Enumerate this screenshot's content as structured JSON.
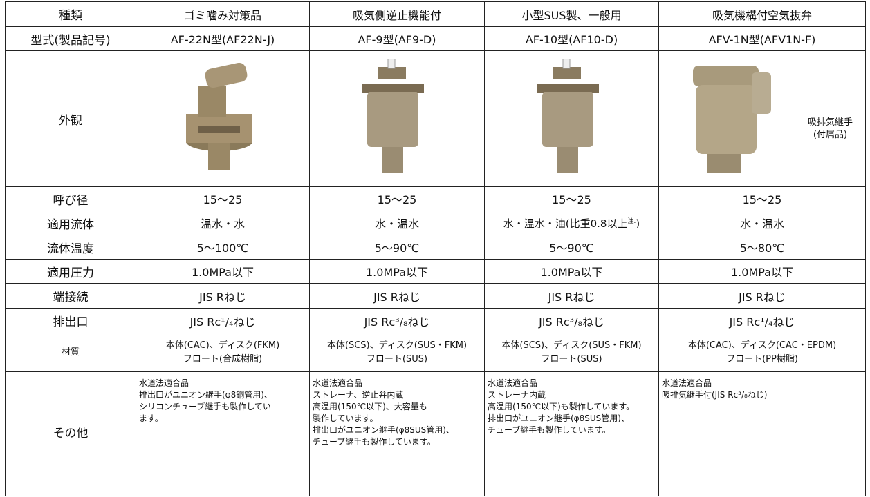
{
  "table": {
    "header": [
      "種類",
      "ゴミ噛み対策品",
      "吸気側逆止機能付",
      "小型SUS製、一般用",
      "吸気機構付空気抜弁"
    ],
    "model": [
      "型式(製品記号)",
      "AF-22N型(AF22N-J)",
      "AF-9型(AF9-D)",
      "AF-10型(AF10-D)",
      "AFV-1N型(AFV1N-F)"
    ],
    "appearance": {
      "label": "外観",
      "caption": [
        "吸排気継手",
        "(付属品)"
      ]
    },
    "size": [
      "呼び径",
      "15～25",
      "15～25",
      "15～25",
      "15～25"
    ],
    "fluid": {
      "label": "適用流体",
      "cells": [
        "温水・水",
        "水・温水",
        {
          "text": "水・温水・油(比重0.8以上",
          "note": "注.",
          "close": ")"
        },
        "水・温水"
      ]
    },
    "temperature": [
      "流体温度",
      "5～100℃",
      "5～90℃",
      "5～90℃",
      "5～80℃"
    ],
    "pressure": [
      "適用圧力",
      "1.0MPa以下",
      "1.0MPa以下",
      "1.0MPa以下",
      "1.0MPa以下"
    ],
    "connection": [
      "端接続",
      "JIS Rねじ",
      "JIS Rねじ",
      "JIS Rねじ",
      "JIS Rねじ"
    ],
    "outlet": [
      "排出口",
      "JIS Rc¹/₄ねじ",
      "JIS Rc³/₈ねじ",
      "JIS Rc³/₈ねじ",
      "JIS Rc¹/₄ねじ"
    ],
    "material": {
      "label": "材質",
      "cells": [
        [
          "本体(CAC)、ディスク(FKM)",
          "フロート(合成樹脂)"
        ],
        [
          "本体(SCS)、ディスク(SUS・FKM)",
          "フロート(SUS)"
        ],
        [
          "本体(SCS)、ディスク(SUS・FKM)",
          "フロート(SUS)"
        ],
        [
          "本体(CAC)、ディスク(CAC・EPDM)",
          "フロート(PP樹脂)"
        ]
      ]
    },
    "other": {
      "label": "その他",
      "cells": [
        [
          "水道法適合品",
          "排出口がユニオン継手(φ8銅管用)、",
          "シリコンチューブ継手も製作してい",
          "ます。"
        ],
        [
          "水道法適合品",
          "ストレーナ、逆止弁内蔵",
          "高温用(150℃以下)、大容量も",
          "製作しています。",
          "排出口がユニオン継手(φ8SUS管用)、",
          "チューブ継手も製作しています。"
        ],
        [
          "水道法適合品",
          "ストレーナ内蔵",
          "高温用(150℃以下)も製作しています。",
          "排出口がユニオン継手(φ8SUS管用)、",
          "チューブ継手も製作しています。"
        ],
        [
          "水道法適合品",
          "吸排気継手付(JIS Rc³/₈ねじ)"
        ]
      ]
    }
  }
}
